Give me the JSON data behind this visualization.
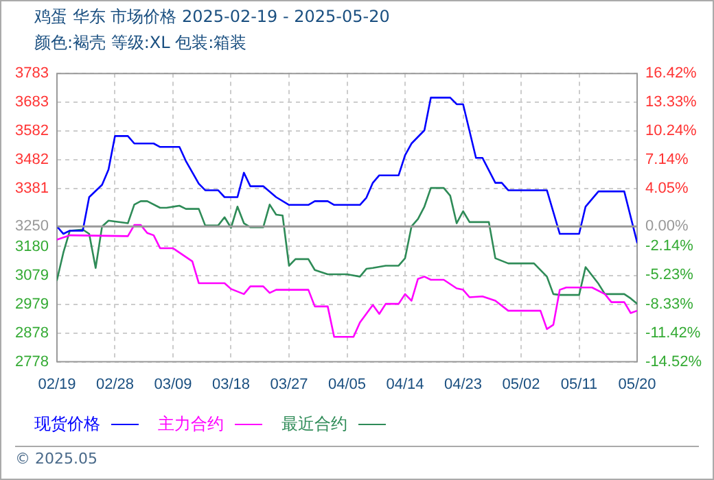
{
  "chart_data": {
    "type": "line",
    "title": "鸡蛋 华东 市场价格 2025-02-19 - 2025-05-20",
    "subtitle": "颜色:褐壳 等级:XL 包装:箱装",
    "annotations": [
      "© 2025.05"
    ],
    "xlim": [
      "2025-02-19",
      "2025-05-20"
    ],
    "xticks": [
      {
        "value": "2025-02-19",
        "label": "02/19"
      },
      {
        "value": "2025-02-28",
        "label": "02/28"
      },
      {
        "value": "2025-03-09",
        "label": "03/09"
      },
      {
        "value": "2025-03-18",
        "label": "03/18"
      },
      {
        "value": "2025-03-27",
        "label": "03/27"
      },
      {
        "value": "2025-04-05",
        "label": "04/05"
      },
      {
        "value": "2025-04-14",
        "label": "04/14"
      },
      {
        "value": "2025-04-23",
        "label": "04/23"
      },
      {
        "value": "2025-05-02",
        "label": "05/02"
      },
      {
        "value": "2025-05-11",
        "label": "05/11"
      },
      {
        "value": "2025-05-20",
        "label": "05/20"
      }
    ],
    "ylim": [
      2778,
      3783
    ],
    "yticks": [
      {
        "value": 3783,
        "label": "3783"
      },
      {
        "value": 3683,
        "label": "3683"
      },
      {
        "value": 3582,
        "label": "3582"
      },
      {
        "value": 3482,
        "label": "3482"
      },
      {
        "value": 3381,
        "label": "3381"
      },
      {
        "value": 3250,
        "label": "3250"
      },
      {
        "value": 3180,
        "label": "3180"
      },
      {
        "value": 3079,
        "label": "3079"
      },
      {
        "value": 2979,
        "label": "2979"
      },
      {
        "value": 2878,
        "label": "2878"
      },
      {
        "value": 2778,
        "label": "2778"
      }
    ],
    "y2lim": [
      -14.52,
      16.42
    ],
    "y2ticks": [
      {
        "value": 16.42,
        "label": "16.42%"
      },
      {
        "value": 13.33,
        "label": "13.33%"
      },
      {
        "value": 10.24,
        "label": "10.24%"
      },
      {
        "value": 7.14,
        "label": "7.14%"
      },
      {
        "value": 4.05,
        "label": "4.05%"
      },
      {
        "value": 0,
        "label": "0.00%"
      },
      {
        "value": -2.14,
        "label": "-2.14%"
      },
      {
        "value": -5.23,
        "label": "-5.23%"
      },
      {
        "value": -8.33,
        "label": "-8.33%"
      },
      {
        "value": -11.42,
        "label": "-11.42%"
      },
      {
        "value": -14.52,
        "label": "-14.52%"
      }
    ],
    "ref_lines": [
      {
        "axis": "y",
        "value": 3250,
        "color": "#999999"
      }
    ],
    "grid": true,
    "legend": "bottom",
    "marker": "none",
    "line_style": "solid",
    "series": [
      {
        "name": "现货价格",
        "color": "#0000ff",
        "x": [
          "2025-02-19",
          "2025-02-20",
          "2025-02-21",
          "2025-02-23",
          "2025-02-24",
          "2025-02-26",
          "2025-02-27",
          "2025-02-28",
          "2025-03-02",
          "2025-03-03",
          "2025-03-06",
          "2025-03-07",
          "2025-03-10",
          "2025-03-11",
          "2025-03-13",
          "2025-03-14",
          "2025-03-16",
          "2025-03-17",
          "2025-03-19",
          "2025-03-20",
          "2025-03-21",
          "2025-03-23",
          "2025-03-25",
          "2025-03-27",
          "2025-03-30",
          "2025-03-31",
          "2025-04-02",
          "2025-04-03",
          "2025-04-07",
          "2025-04-08",
          "2025-04-09",
          "2025-04-10",
          "2025-04-13",
          "2025-04-14",
          "2025-04-15",
          "2025-04-17",
          "2025-04-18",
          "2025-04-21",
          "2025-04-22",
          "2025-04-23",
          "2025-04-25",
          "2025-04-26",
          "2025-04-28",
          "2025-04-29",
          "2025-04-30",
          "2025-05-06",
          "2025-05-08",
          "2025-05-11",
          "2025-05-12",
          "2025-05-14",
          "2025-05-18",
          "2025-05-20"
        ],
        "values": [
          3250,
          3224,
          3235,
          3235,
          3352,
          3395,
          3448,
          3565,
          3565,
          3539,
          3539,
          3527,
          3527,
          3478,
          3399,
          3376,
          3376,
          3352,
          3352,
          3437,
          3390,
          3390,
          3352,
          3325,
          3325,
          3338,
          3338,
          3325,
          3325,
          3350,
          3402,
          3428,
          3428,
          3498,
          3539,
          3585,
          3699,
          3699,
          3676,
          3676,
          3489,
          3489,
          3402,
          3402,
          3376,
          3376,
          3224,
          3224,
          3319,
          3372,
          3372,
          3194
        ]
      },
      {
        "name": "主力合约",
        "color": "#ff00ff",
        "x": [
          "2025-02-19",
          "2025-02-21",
          "2025-03-02",
          "2025-03-03",
          "2025-03-04",
          "2025-03-05",
          "2025-03-06",
          "2025-03-07",
          "2025-03-09",
          "2025-03-12",
          "2025-03-13",
          "2025-03-17",
          "2025-03-18",
          "2025-03-20",
          "2025-03-21",
          "2025-03-23",
          "2025-03-24",
          "2025-03-25",
          "2025-03-30",
          "2025-03-31",
          "2025-04-02",
          "2025-04-03",
          "2025-04-06",
          "2025-04-07",
          "2025-04-09",
          "2025-04-10",
          "2025-04-11",
          "2025-04-13",
          "2025-04-14",
          "2025-04-15",
          "2025-04-16",
          "2025-04-17",
          "2025-04-18",
          "2025-04-20",
          "2025-04-22",
          "2025-04-23",
          "2025-04-24",
          "2025-04-26",
          "2025-04-28",
          "2025-04-30",
          "2025-05-05",
          "2025-05-06",
          "2025-05-07",
          "2025-05-08",
          "2025-05-09",
          "2025-05-13",
          "2025-05-15",
          "2025-05-16",
          "2025-05-18",
          "2025-05-19",
          "2025-05-20"
        ],
        "values": [
          3204,
          3219,
          3216,
          3255,
          3255,
          3227,
          3219,
          3174,
          3174,
          3128,
          3052,
          3052,
          3032,
          3014,
          3041,
          3041,
          3018,
          3029,
          3029,
          2971,
          2971,
          2865,
          2865,
          2915,
          2976,
          2945,
          2980,
          2980,
          3014,
          2991,
          3067,
          3075,
          3064,
          3064,
          3034,
          3029,
          3003,
          3006,
          2991,
          2956,
          2956,
          2892,
          2907,
          3029,
          3037,
          3037,
          3014,
          2986,
          2986,
          2948,
          2956
        ]
      },
      {
        "name": "最近合约",
        "color": "#2e8b57",
        "x": [
          "2025-02-19",
          "2025-02-20",
          "2025-02-21",
          "2025-02-23",
          "2025-02-24",
          "2025-02-25",
          "2025-02-26",
          "2025-02-27",
          "2025-03-02",
          "2025-03-03",
          "2025-03-04",
          "2025-03-05",
          "2025-03-07",
          "2025-03-08",
          "2025-03-10",
          "2025-03-11",
          "2025-03-13",
          "2025-03-14",
          "2025-03-16",
          "2025-03-17",
          "2025-03-18",
          "2025-03-19",
          "2025-03-20",
          "2025-03-21",
          "2025-03-23",
          "2025-03-24",
          "2025-03-25",
          "2025-03-26",
          "2025-03-27",
          "2025-03-28",
          "2025-03-30",
          "2025-03-31",
          "2025-04-02",
          "2025-04-05",
          "2025-04-07",
          "2025-04-08",
          "2025-04-09",
          "2025-04-11",
          "2025-04-13",
          "2025-04-14",
          "2025-04-15",
          "2025-04-16",
          "2025-04-17",
          "2025-04-18",
          "2025-04-20",
          "2025-04-21",
          "2025-04-22",
          "2025-04-23",
          "2025-04-24",
          "2025-04-27",
          "2025-04-28",
          "2025-04-30",
          "2025-05-04",
          "2025-05-06",
          "2025-05-07",
          "2025-05-08",
          "2025-05-11",
          "2025-05-12",
          "2025-05-14",
          "2025-05-15",
          "2025-05-18",
          "2025-05-19",
          "2025-05-20"
        ],
        "values": [
          3063,
          3159,
          3235,
          3239,
          3224,
          3105,
          3250,
          3270,
          3261,
          3326,
          3338,
          3338,
          3315,
          3315,
          3322,
          3311,
          3311,
          3253,
          3253,
          3282,
          3245,
          3319,
          3261,
          3247,
          3247,
          3326,
          3291,
          3288,
          3113,
          3136,
          3136,
          3098,
          3083,
          3083,
          3075,
          3102,
          3105,
          3113,
          3113,
          3139,
          3250,
          3276,
          3319,
          3384,
          3384,
          3357,
          3261,
          3303,
          3265,
          3265,
          3139,
          3121,
          3121,
          3075,
          3014,
          3011,
          3011,
          3108,
          3050,
          3014,
          3014,
          2999,
          2980
        ]
      }
    ]
  }
}
